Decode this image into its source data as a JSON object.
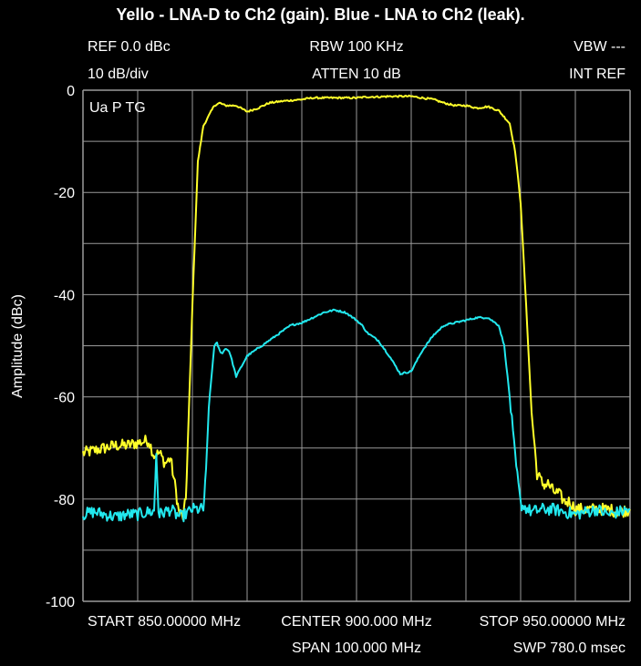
{
  "title": "Yello - LNA-D to Ch2 (gain). Blue - LNA to Ch2 (leak).",
  "header": {
    "ref": "REF 0.0 dBc",
    "rbw": "RBW 100 KHz",
    "vbw": "VBW ---",
    "scale": "10 dB/div",
    "atten": "ATTEN 10 dB",
    "ref_mode": "INT REF"
  },
  "marker_label": "Ua P TG",
  "footer": {
    "start": "START 850.00000 MHz",
    "center": "CENTER 900.000 MHz",
    "stop": "STOP 950.00000 MHz",
    "span": "SPAN 100.000 MHz",
    "sweep": "SWP 780.0 msec"
  },
  "colors": {
    "background": "#000000",
    "grid": "#9a9a9a",
    "text": "#ffffff",
    "yellow_trace": "#ffff2a",
    "cyan_trace": "#22e8ee"
  },
  "chart_data": {
    "type": "line",
    "title": "Yello - LNA-D to Ch2 (gain). Blue - LNA to Ch2 (leak).",
    "xlabel": "",
    "ylabel": "Amplitude (dBc)",
    "xlim": [
      850,
      950
    ],
    "ylim": [
      -100,
      0
    ],
    "x_unit": "MHz",
    "yticks": [
      0,
      -20,
      -40,
      -60,
      -80,
      -100
    ],
    "ytick_labels": [
      "0",
      "-20",
      "-40",
      "-60",
      "-80",
      "-100"
    ],
    "x_divisions": 10,
    "y_divisions": 10,
    "grid": true,
    "legend": "none",
    "series": [
      {
        "color": "#ffff2a",
        "x": [
          850,
          852,
          854,
          856,
          858,
          860,
          862,
          863,
          864,
          865,
          866,
          867,
          867.5,
          868,
          868.3,
          868.8,
          869.3,
          870,
          871,
          872,
          873,
          874,
          875,
          876,
          878,
          880,
          882,
          884,
          886,
          888,
          890,
          892,
          894,
          896,
          898,
          900,
          902,
          904,
          906,
          908,
          910,
          912,
          914,
          916,
          918,
          920,
          922,
          924,
          926,
          928,
          929,
          930,
          931,
          932,
          933,
          934,
          934.5,
          935,
          936,
          937,
          938,
          939,
          940,
          942,
          944,
          946,
          948,
          950
        ],
        "y": [
          -71,
          -70.5,
          -70,
          -69.5,
          -69.5,
          -69,
          -68.5,
          -71.5,
          -71,
          -73,
          -72,
          -78.5,
          -82.5,
          -83,
          -83.5,
          -80,
          -65,
          -42,
          -14,
          -7,
          -5,
          -3,
          -2.5,
          -3,
          -3,
          -4.2,
          -3.5,
          -2.5,
          -2.2,
          -2,
          -1.8,
          -1.5,
          -1.5,
          -1.5,
          -1.5,
          -1.5,
          -1.3,
          -1.3,
          -1.2,
          -1.2,
          -1.2,
          -1.5,
          -1.8,
          -2.5,
          -3,
          -3,
          -3.5,
          -3.2,
          -4,
          -6.5,
          -12,
          -22,
          -42,
          -63,
          -75,
          -77,
          -77.2,
          -77,
          -78.5,
          -79,
          -80.5,
          -80.5,
          -82,
          -82,
          -82,
          -82,
          -82.5,
          -82
        ]
      },
      {
        "color": "#22e8ee",
        "x": [
          850,
          852,
          854,
          856,
          858,
          860,
          862,
          863,
          863.4,
          863.8,
          864,
          866,
          867,
          868,
          870,
          871,
          872,
          872.5,
          873,
          874,
          874.5,
          875,
          875.5,
          876,
          876.7,
          877,
          878,
          880,
          882,
          884,
          886,
          888,
          890,
          892,
          894,
          896,
          898,
          900,
          901,
          902,
          904,
          906,
          908,
          910,
          912,
          914,
          916,
          918,
          920,
          922,
          924,
          926,
          927,
          928,
          929,
          930,
          932,
          934,
          936,
          938,
          940,
          942,
          944,
          946,
          948,
          950
        ],
        "y": [
          -83,
          -82.5,
          -83,
          -83.5,
          -83,
          -83,
          -82.5,
          -82.5,
          -71,
          -82,
          -83,
          -82,
          -83,
          -83.5,
          -82,
          -82,
          -82,
          -75,
          -62,
          -50,
          -49.5,
          -51,
          -51.5,
          -50.5,
          -51,
          -52,
          -56,
          -52,
          -50.5,
          -49,
          -47.5,
          -46,
          -45.5,
          -44.5,
          -43.5,
          -43,
          -43.5,
          -45,
          -46,
          -47.5,
          -49,
          -52,
          -55.5,
          -55,
          -51,
          -48,
          -46,
          -45.5,
          -45,
          -44.5,
          -44.5,
          -46,
          -50,
          -60,
          -72,
          -81,
          -82.5,
          -82,
          -82,
          -82.5,
          -83,
          -82.5,
          -82,
          -83,
          -82.5,
          -82
        ]
      }
    ]
  }
}
